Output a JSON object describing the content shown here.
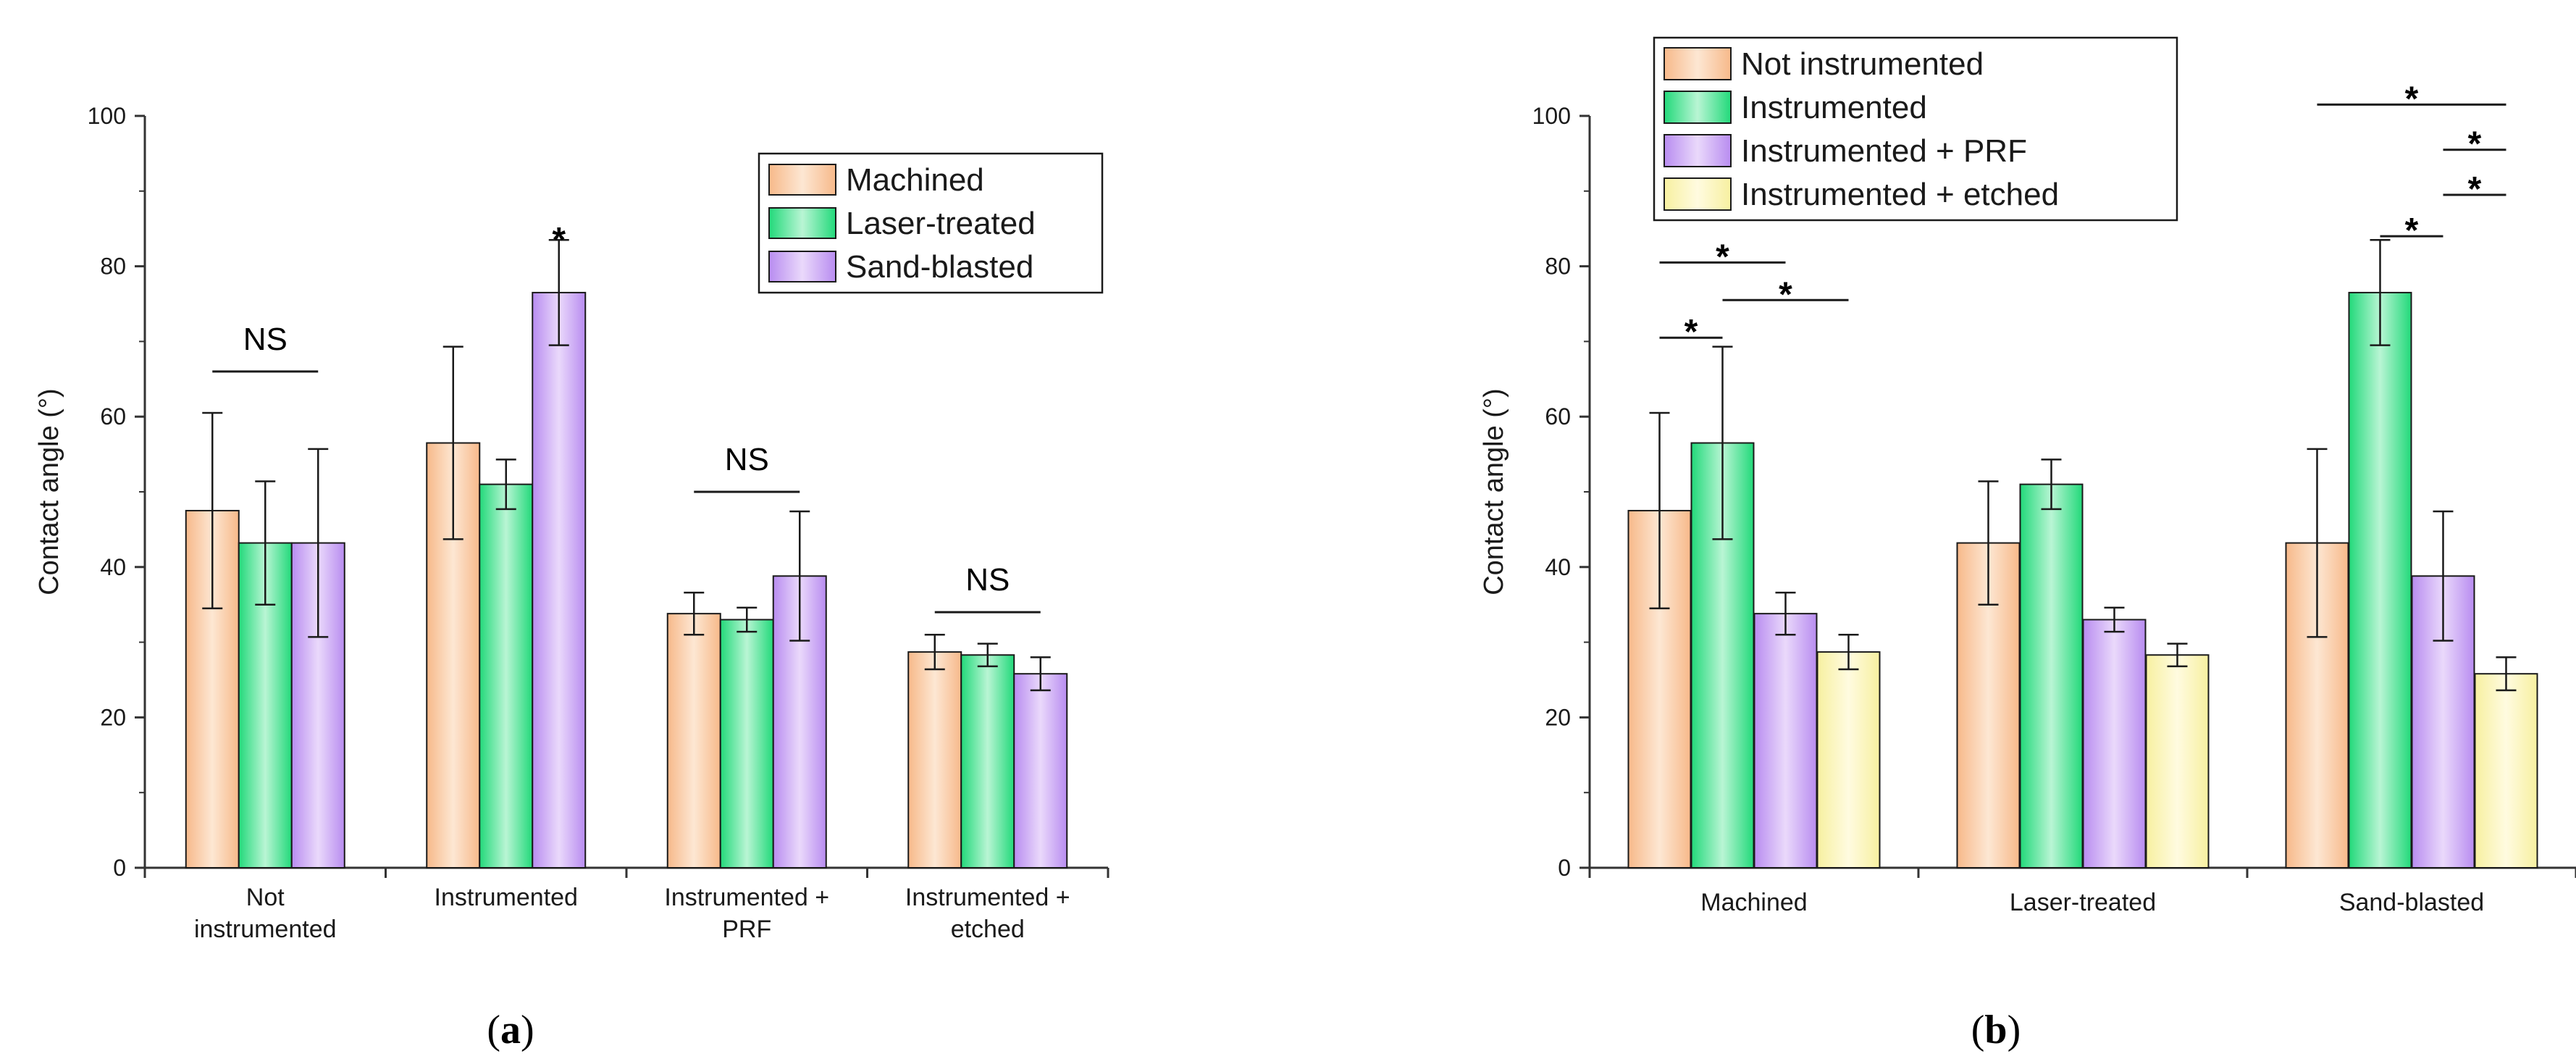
{
  "chart_data": [
    {
      "type": "bar",
      "panel_label": "(a)",
      "panel_letter": "a",
      "ylabel": "Contact angle (°)",
      "ylim": [
        0,
        100
      ],
      "yticks": [
        0,
        20,
        40,
        60,
        80,
        100
      ],
      "grid": false,
      "legend_position": "top-right",
      "categories": [
        [
          "Not",
          "instrumented"
        ],
        [
          "Instrumented"
        ],
        [
          "Instrumented +",
          "PRF"
        ],
        [
          "Instrumented +",
          "etched"
        ]
      ],
      "series": [
        {
          "name": "Machined",
          "color_light": "#fde7d3",
          "color_dark": "#f7b98a",
          "values": [
            47.5,
            56.5,
            33.8,
            28.7
          ],
          "errors": [
            13.0,
            12.8,
            2.8,
            2.3
          ]
        },
        {
          "name": "Laser-treated",
          "color_light": "#b9f5d4",
          "color_dark": "#22d97a",
          "values": [
            43.2,
            51.0,
            33.0,
            28.3
          ],
          "errors": [
            8.2,
            3.3,
            1.6,
            1.5
          ]
        },
        {
          "name": "Sand-blasted",
          "color_light": "#ead9fb",
          "color_dark": "#b88cf0",
          "values": [
            43.2,
            76.5,
            38.8,
            25.8
          ],
          "errors": [
            12.5,
            7.0,
            8.6,
            2.2
          ]
        }
      ],
      "annotations": [
        {
          "type": "bracket",
          "text": "NS",
          "category": 0,
          "from_series": 0,
          "to_series": 2,
          "y": 66
        },
        {
          "type": "star",
          "text": "*",
          "category": 1,
          "series": 2,
          "y": 84.5
        },
        {
          "type": "bracket",
          "text": "NS",
          "category": 2,
          "from_series": 0,
          "to_series": 2,
          "y": 50
        },
        {
          "type": "bracket",
          "text": "NS",
          "category": 3,
          "from_series": 0,
          "to_series": 2,
          "y": 34
        }
      ]
    },
    {
      "type": "bar",
      "panel_label": "(b)",
      "panel_letter": "b",
      "ylabel": "Contact angle (°)",
      "ylim": [
        0,
        100
      ],
      "yticks": [
        0,
        20,
        40,
        60,
        80,
        100
      ],
      "grid": false,
      "legend_position": "top-left",
      "categories": [
        [
          "Machined"
        ],
        [
          "Laser-treated"
        ],
        [
          "Sand-blasted"
        ]
      ],
      "series": [
        {
          "name": "Not instrumented",
          "color_light": "#fde7d3",
          "color_dark": "#f7b98a",
          "values": [
            47.5,
            43.2,
            43.2
          ],
          "errors": [
            13.0,
            8.2,
            12.5
          ]
        },
        {
          "name": "Instrumented",
          "color_light": "#b9f5d4",
          "color_dark": "#22d97a",
          "values": [
            56.5,
            51.0,
            76.5
          ],
          "errors": [
            12.8,
            3.3,
            7.0
          ]
        },
        {
          "name": "Instrumented + PRF",
          "color_light": "#ead9fb",
          "color_dark": "#b88cf0",
          "values": [
            33.8,
            33.0,
            38.8
          ],
          "errors": [
            2.8,
            1.6,
            8.6
          ]
        },
        {
          "name": "Instrumented + etched",
          "color_light": "#fffbe0",
          "color_dark": "#f7f0a0",
          "values": [
            28.7,
            28.3,
            25.8
          ],
          "errors": [
            2.3,
            1.5,
            2.2
          ]
        }
      ],
      "annotations": [
        {
          "type": "sig_bracket",
          "text": "*",
          "category": 0,
          "from_series": 0,
          "to_series": 2,
          "y": 80.5
        },
        {
          "type": "sig_bracket",
          "text": "*",
          "category": 0,
          "from_series": 1,
          "to_series": 3,
          "y": 75.5
        },
        {
          "type": "sig_bracket",
          "text": "*",
          "category": 0,
          "from_series": 0,
          "to_series": 1,
          "y": 70.5
        },
        {
          "type": "sig_bracket",
          "text": "*",
          "category": 2,
          "from_series": 0,
          "to_series": 3,
          "y": 101.5
        },
        {
          "type": "sig_bracket",
          "text": "*",
          "category": 2,
          "from_series": 2,
          "to_series": 3,
          "y": 95.5
        },
        {
          "type": "sig_bracket",
          "text": "*",
          "category": 2,
          "from_series": 2,
          "to_series": 3,
          "y": 89.5
        },
        {
          "type": "sig_bracket",
          "text": "*",
          "category": 2,
          "from_series": 1,
          "to_series": 2,
          "y": 84.0
        }
      ]
    }
  ]
}
